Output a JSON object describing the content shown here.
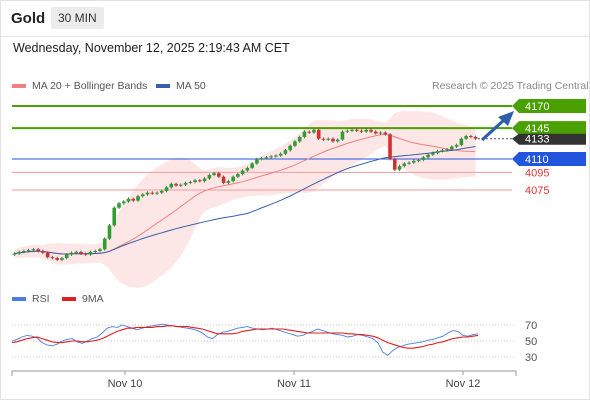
{
  "header": {
    "symbol": "Gold",
    "interval": "30 MIN",
    "datetime": "Wednesday, November 12, 2025 2:19:43 AM CET"
  },
  "legend": {
    "ma20_label": "MA 20 + Bollinger Bands",
    "ma50_label": "MA 50",
    "credit": "Research © 2025 Trading Central",
    "rsi_label": "RSI",
    "rsi_ma_label": "9MA"
  },
  "colors": {
    "bull": "#2e9e2e",
    "bear": "#d32f2f",
    "ma20": "#f08080",
    "ma50": "#3a5fa8",
    "resistance": "#4aa000",
    "pivot": "#2255dd",
    "support": "#e33333",
    "rsi": "#4a7ee0",
    "rsi_ma": "#e02020",
    "current": "#333333"
  },
  "chart_data": [
    {
      "type": "candlestick",
      "title": "Gold",
      "x_ticks": [
        "Nov 10",
        "Nov 11",
        "Nov 12"
      ],
      "ylim": [
        4000,
        4180
      ],
      "levels": [
        {
          "value": 4170,
          "label": "4170",
          "kind": "resistance"
        },
        {
          "value": 4145,
          "label": "4145",
          "kind": "resistance"
        },
        {
          "value": 4133,
          "label": "4133",
          "kind": "current"
        },
        {
          "value": 4110,
          "label": "4110",
          "kind": "pivot"
        },
        {
          "value": 4095,
          "label": "4095",
          "kind": "support"
        },
        {
          "value": 4075,
          "label": "4075",
          "kind": "support"
        }
      ],
      "closes": [
        4003,
        4005,
        4006,
        4007,
        4008,
        4006,
        4004,
        3999,
        3998,
        3996,
        3998,
        4002,
        4004,
        4005,
        4003,
        4002,
        4005,
        4006,
        4008,
        4020,
        4035,
        4055,
        4060,
        4062,
        4065,
        4063,
        4068,
        4070,
        4072,
        4071,
        4072,
        4074,
        4078,
        4082,
        4080,
        4081,
        4083,
        4084,
        4086,
        4085,
        4088,
        4092,
        4094,
        4090,
        4083,
        4085,
        4090,
        4093,
        4097,
        4100,
        4105,
        4110,
        4111,
        4112,
        4113,
        4114,
        4116,
        4120,
        4125,
        4130,
        4135,
        4141,
        4140,
        4143,
        4133,
        4132,
        4133,
        4130,
        4132,
        4141,
        4142,
        4143,
        4142,
        4141,
        4143,
        4141,
        4139,
        4140,
        4138,
        4110,
        4098,
        4102,
        4105,
        4106,
        4108,
        4109,
        4112,
        4115,
        4117,
        4119,
        4120,
        4121,
        4124,
        4126,
        4133,
        4136,
        4135,
        4133
      ],
      "ma20_bb_present": true,
      "ma50_present": true
    },
    {
      "type": "line",
      "title": "RSI",
      "series": [
        {
          "name": "RSI",
          "values": [
            50,
            52,
            55,
            57,
            56,
            54,
            48,
            45,
            44,
            46,
            50,
            52,
            53,
            49,
            47,
            50,
            53,
            55,
            60,
            66,
            68,
            67,
            70,
            68,
            66,
            64,
            66,
            68,
            69,
            70,
            71,
            70,
            69,
            68,
            67,
            66,
            65,
            63,
            60,
            55,
            53,
            58,
            61,
            62,
            64,
            66,
            67,
            68,
            66,
            65,
            64,
            65,
            66,
            64,
            62,
            60,
            58,
            56,
            57,
            60,
            62,
            65,
            63,
            61,
            59,
            58,
            57,
            55,
            56,
            58,
            57,
            55,
            53,
            48,
            36,
            32,
            38,
            42,
            44,
            46,
            47,
            48,
            49,
            51,
            52,
            54,
            56,
            60,
            63,
            62,
            57,
            56,
            58,
            59
          ]
        },
        {
          "name": "9MA",
          "values": [
            48,
            49,
            51,
            53,
            54,
            55,
            53,
            51,
            49,
            48,
            48,
            49,
            50,
            50,
            49,
            49,
            50,
            51,
            53,
            56,
            59,
            62,
            64,
            66,
            66,
            67,
            67,
            67,
            67,
            68,
            68,
            69,
            69,
            68,
            68,
            68,
            67,
            66,
            65,
            63,
            61,
            59,
            59,
            59,
            59,
            60,
            62,
            63,
            64,
            65,
            65,
            65,
            65,
            65,
            65,
            64,
            63,
            62,
            61,
            60,
            60,
            60,
            60,
            60,
            60,
            60,
            60,
            59,
            59,
            58,
            58,
            57,
            56,
            54,
            51,
            48,
            46,
            44,
            42,
            41,
            41,
            42,
            43,
            45,
            46,
            48,
            49,
            51,
            53,
            54,
            55,
            55,
            56,
            57
          ]
        }
      ],
      "ylim": [
        20,
        80
      ],
      "levels": [
        {
          "value": 70,
          "label": "70"
        },
        {
          "value": 50,
          "label": "50"
        },
        {
          "value": 30,
          "label": "30"
        }
      ]
    }
  ]
}
